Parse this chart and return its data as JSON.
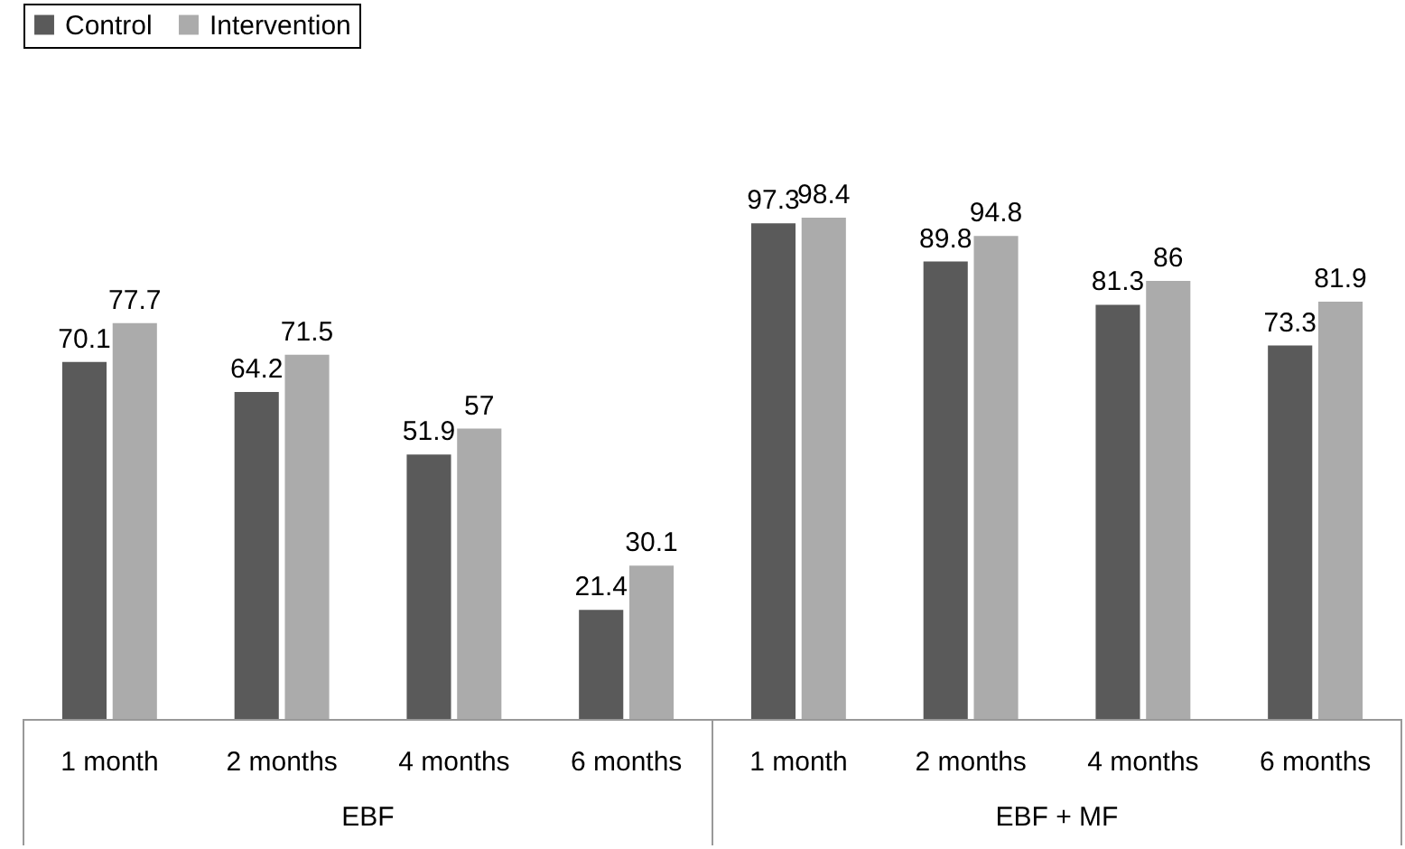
{
  "chart_data": {
    "type": "bar",
    "categories": [
      "1 month",
      "2 months",
      "4 months",
      "6 months",
      "1 month",
      "2 months",
      "4 months",
      "6 months"
    ],
    "series": [
      {
        "name": "Control",
        "color": "#5a5a5a",
        "values": [
          70.1,
          64.2,
          51.9,
          21.4,
          97.3,
          89.8,
          81.3,
          73.3
        ]
      },
      {
        "name": "Intervention",
        "color": "#ababab",
        "values": [
          77.7,
          71.5,
          57,
          30.1,
          98.4,
          94.8,
          86,
          81.9
        ]
      }
    ],
    "annotations": [
      "EBF",
      "EBF + MF"
    ],
    "data_labels": true,
    "legend": "top",
    "grid": false
  }
}
